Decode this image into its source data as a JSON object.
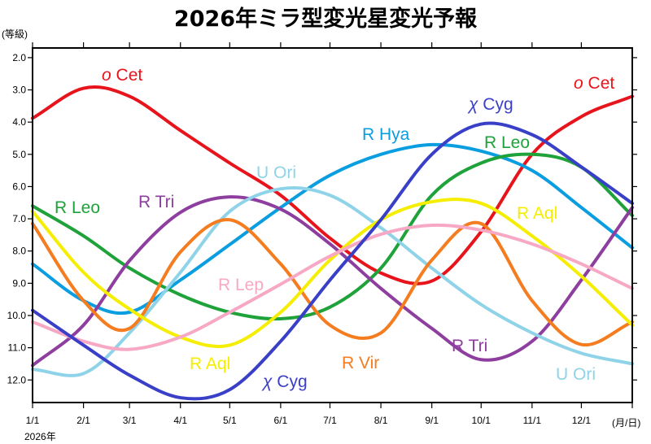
{
  "chart_data": {
    "type": "line",
    "title": "2026年ミラ型変光星変光予報",
    "ylabel": "(等級)",
    "xlabel": "(月/日)",
    "year_label": "2026年",
    "ylim": [
      1.7,
      12.7
    ],
    "y_inverted": true,
    "xlim": [
      "2026-01-01",
      "2027-01-01"
    ],
    "grid": false,
    "legend": "none (labels placed next to curves)",
    "x_tick_labels": [
      "1/1",
      "2/1",
      "3/1",
      "4/1",
      "5/1",
      "6/1",
      "7/1",
      "8/1",
      "9/1",
      "10/1",
      "11/1",
      "12/1"
    ],
    "y_ticks": [
      "2.0",
      "3.0",
      "4.0",
      "5.0",
      "6.0",
      "7.0",
      "8.0",
      "9.0",
      "10.0",
      "11.0",
      "12.0"
    ],
    "x": [
      "2026-01-01",
      "2026-02-01",
      "2026-03-01",
      "2026-04-01",
      "2026-05-01",
      "2026-06-01",
      "2026-07-01",
      "2026-08-01",
      "2026-09-01",
      "2026-10-01",
      "2026-11-01",
      "2026-12-01",
      "2027-01-01"
    ],
    "series": [
      {
        "name": "o Cet",
        "color": "#e8141c",
        "values": [
          3.88,
          2.95,
          3.2,
          4.26,
          5.27,
          6.27,
          7.6,
          8.68,
          8.93,
          7.4,
          5.0,
          3.83,
          3.2
        ]
      },
      {
        "name": "R Hya",
        "color": "#0a9ee0",
        "values": [
          8.4,
          9.54,
          9.9,
          8.9,
          7.8,
          6.65,
          5.65,
          5.0,
          4.7,
          4.9,
          5.5,
          6.65,
          7.9
        ]
      },
      {
        "name": "R Leo",
        "color": "#1fa23a",
        "values": [
          6.6,
          7.53,
          8.53,
          9.36,
          9.9,
          10.1,
          9.74,
          8.53,
          6.27,
          5.27,
          5.0,
          5.4,
          6.9
        ]
      },
      {
        "name": "R Tri",
        "color": "#8e3e9e",
        "values": [
          11.55,
          10.3,
          8.3,
          6.8,
          6.32,
          6.7,
          7.78,
          9.16,
          10.4,
          11.37,
          10.8,
          8.9,
          6.65
        ]
      },
      {
        "name": "U Ori",
        "color": "#8fd3e8",
        "values": [
          11.67,
          11.8,
          10.54,
          8.66,
          6.77,
          6.07,
          6.27,
          7.28,
          8.53,
          9.66,
          10.54,
          11.17,
          11.5
        ]
      },
      {
        "name": "R Vir",
        "color": "#f57c1f",
        "values": [
          7.15,
          9.54,
          10.4,
          8.03,
          7.03,
          8.4,
          10.3,
          10.54,
          8.28,
          7.15,
          9.54,
          10.9,
          10.2
        ]
      },
      {
        "name": "R Aql",
        "color": "#f5ee00",
        "values": [
          6.77,
          8.66,
          9.8,
          10.67,
          10.92,
          9.9,
          8.28,
          7.03,
          6.47,
          6.52,
          7.53,
          8.78,
          10.3
        ]
      },
      {
        "name": "R Lep",
        "color": "#f7a8c4",
        "values": [
          10.2,
          10.8,
          11.05,
          10.67,
          9.9,
          9.03,
          8.16,
          7.48,
          7.2,
          7.35,
          7.78,
          8.4,
          9.16
        ]
      },
      {
        "name": "χ Cyg",
        "color": "#3a3fc8",
        "values": [
          9.84,
          10.92,
          11.85,
          12.55,
          12.3,
          10.8,
          8.9,
          7.03,
          5.0,
          4.06,
          4.39,
          5.39,
          6.52
        ]
      }
    ],
    "annotations": [
      {
        "series": "o Cet",
        "prefix": "o",
        "text": " Cet"
      },
      {
        "series": "o Cet",
        "prefix": "o",
        "text": " Cet"
      },
      {
        "series": "χ Cyg",
        "prefix": "χ",
        "text": " Cyg"
      },
      {
        "series": "χ Cyg",
        "prefix": "χ",
        "text": " Cyg"
      },
      {
        "series": "R Hya",
        "prefix": "",
        "text": "R Hya"
      },
      {
        "series": "R Leo",
        "prefix": "",
        "text": "R Leo"
      },
      {
        "series": "R Leo",
        "prefix": "",
        "text": "R Leo"
      },
      {
        "series": "U Ori",
        "prefix": "",
        "text": "U Ori"
      },
      {
        "series": "U Ori",
        "prefix": "",
        "text": "U Ori"
      },
      {
        "series": "R Tri",
        "prefix": "",
        "text": "R Tri"
      },
      {
        "series": "R Tri",
        "prefix": "",
        "text": "R Tri"
      },
      {
        "series": "R Aql",
        "prefix": "",
        "text": "R Aql"
      },
      {
        "series": "R Aql",
        "prefix": "",
        "text": "R Aql"
      },
      {
        "series": "R Lep",
        "prefix": "",
        "text": "R Lep"
      },
      {
        "series": "R Vir",
        "prefix": "",
        "text": "R Vir"
      }
    ]
  }
}
